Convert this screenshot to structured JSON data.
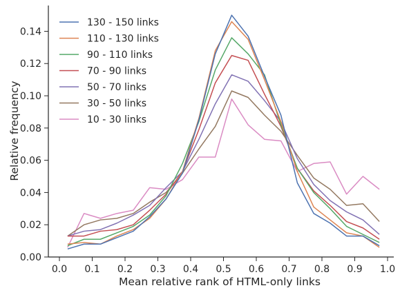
{
  "chart_data": {
    "type": "line",
    "title": "",
    "xlabel": "Mean relative rank of HTML-only links",
    "ylabel": "Relative frequency",
    "xlim": [
      0.0,
      1.0
    ],
    "ylim": [
      0.0,
      0.156
    ],
    "x_ticks": [
      0.0,
      0.1,
      0.2,
      0.3,
      0.4,
      0.5,
      0.6,
      0.7,
      0.8,
      0.9,
      1.0
    ],
    "x_tick_labels": [
      "0.0",
      "0.1",
      "0.2",
      "0.3",
      "0.4",
      "0.5",
      "0.6",
      "0.7",
      "0.8",
      "0.9",
      "1.0"
    ],
    "y_ticks": [
      0.0,
      0.02,
      0.04,
      0.06,
      0.08,
      0.1,
      0.12,
      0.14
    ],
    "y_tick_labels": [
      "0.00",
      "0.02",
      "0.04",
      "0.06",
      "0.08",
      "0.10",
      "0.12",
      "0.14"
    ],
    "grid": false,
    "legend_position": "top-left",
    "x": [
      0.025,
      0.075,
      0.125,
      0.175,
      0.225,
      0.275,
      0.325,
      0.375,
      0.425,
      0.475,
      0.525,
      0.575,
      0.625,
      0.675,
      0.725,
      0.775,
      0.825,
      0.875,
      0.925,
      0.975
    ],
    "series": [
      {
        "name": "130 - 150 links",
        "color": "#4c72b0",
        "values": [
          0.005,
          0.008,
          0.008,
          0.012,
          0.016,
          0.025,
          0.036,
          0.052,
          0.085,
          0.126,
          0.15,
          0.137,
          0.112,
          0.088,
          0.046,
          0.027,
          0.021,
          0.013,
          0.013,
          0.007
        ]
      },
      {
        "name": "110 - 130 links",
        "color": "#dd8452",
        "values": [
          0.008,
          0.009,
          0.008,
          0.013,
          0.017,
          0.024,
          0.036,
          0.053,
          0.086,
          0.128,
          0.146,
          0.135,
          0.11,
          0.084,
          0.053,
          0.031,
          0.023,
          0.015,
          0.013,
          0.006
        ]
      },
      {
        "name": "90 - 110 links",
        "color": "#55a868",
        "values": [
          0.007,
          0.011,
          0.011,
          0.015,
          0.019,
          0.026,
          0.038,
          0.058,
          0.084,
          0.116,
          0.136,
          0.126,
          0.113,
          0.082,
          0.055,
          0.04,
          0.03,
          0.019,
          0.014,
          0.009
        ]
      },
      {
        "name": "70 - 90 links",
        "color": "#c44e52",
        "values": [
          0.013,
          0.013,
          0.016,
          0.017,
          0.02,
          0.029,
          0.039,
          0.053,
          0.079,
          0.108,
          0.125,
          0.122,
          0.101,
          0.081,
          0.055,
          0.041,
          0.032,
          0.022,
          0.018,
          0.011
        ]
      },
      {
        "name": "50 - 70 links",
        "color": "#8172b3",
        "values": [
          0.013,
          0.016,
          0.017,
          0.021,
          0.026,
          0.032,
          0.043,
          0.053,
          0.073,
          0.095,
          0.113,
          0.109,
          0.097,
          0.084,
          0.061,
          0.045,
          0.035,
          0.028,
          0.023,
          0.014
        ]
      },
      {
        "name": "30 - 50 links",
        "color": "#937860",
        "values": [
          0.013,
          0.02,
          0.023,
          0.024,
          0.027,
          0.034,
          0.04,
          0.052,
          0.067,
          0.081,
          0.103,
          0.099,
          0.088,
          0.078,
          0.063,
          0.049,
          0.042,
          0.032,
          0.033,
          0.022
        ]
      },
      {
        "name": "10 - 30 links",
        "color": "#da8bc3",
        "values": [
          0.006,
          0.027,
          0.024,
          0.027,
          0.029,
          0.043,
          0.042,
          0.048,
          0.062,
          0.062,
          0.098,
          0.082,
          0.073,
          0.072,
          0.053,
          0.058,
          0.059,
          0.039,
          0.05,
          0.042
        ]
      }
    ]
  }
}
